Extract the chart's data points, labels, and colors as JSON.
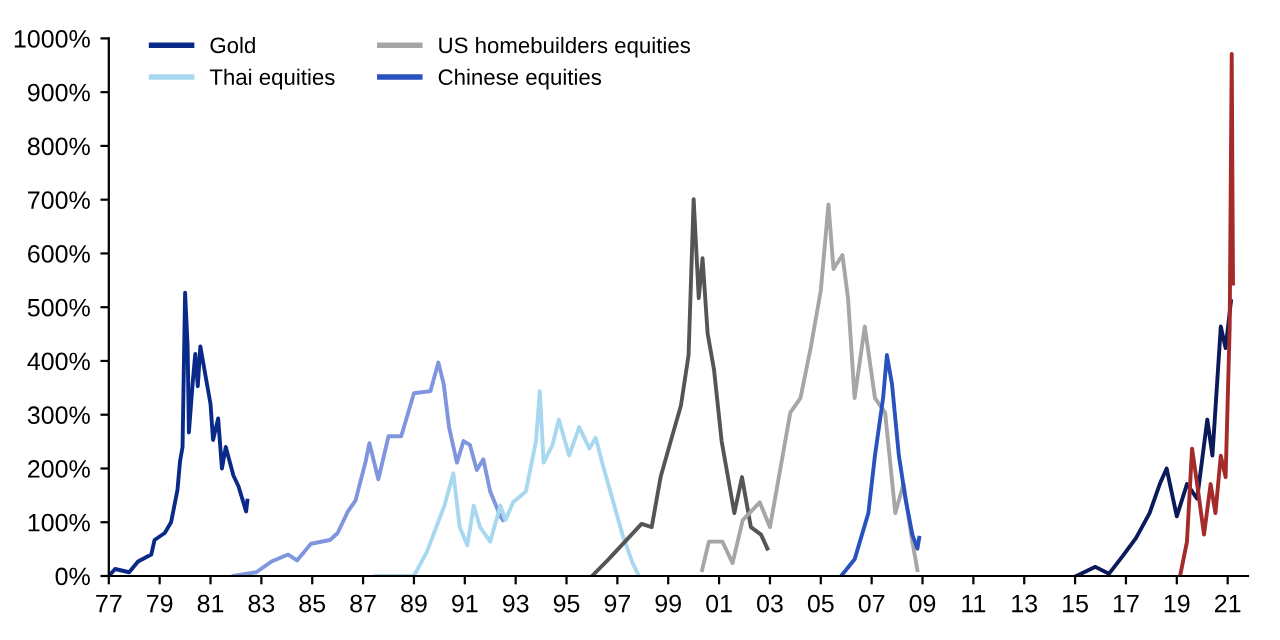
{
  "chart_data": {
    "type": "line",
    "xlim": [
      1977,
      2021.8
    ],
    "ylim": [
      0,
      1000
    ],
    "xticks": [
      {
        "value": 1977,
        "label": "77"
      },
      {
        "value": 1979,
        "label": "79"
      },
      {
        "value": 1981,
        "label": "81"
      },
      {
        "value": 1983,
        "label": "83"
      },
      {
        "value": 1985,
        "label": "85"
      },
      {
        "value": 1987,
        "label": "87"
      },
      {
        "value": 1989,
        "label": "89"
      },
      {
        "value": 1991,
        "label": "91"
      },
      {
        "value": 1993,
        "label": "93"
      },
      {
        "value": 1995,
        "label": "95"
      },
      {
        "value": 1997,
        "label": "97"
      },
      {
        "value": 1999,
        "label": "99"
      },
      {
        "value": 2001,
        "label": "01"
      },
      {
        "value": 2003,
        "label": "03"
      },
      {
        "value": 2005,
        "label": "05"
      },
      {
        "value": 2007,
        "label": "07"
      },
      {
        "value": 2009,
        "label": "09"
      },
      {
        "value": 2011,
        "label": "11"
      },
      {
        "value": 2013,
        "label": "13"
      },
      {
        "value": 2015,
        "label": "15"
      },
      {
        "value": 2017,
        "label": "17"
      },
      {
        "value": 2019,
        "label": "19"
      },
      {
        "value": 2021,
        "label": "21"
      }
    ],
    "yticks": [
      {
        "value": 0,
        "label": "0%"
      },
      {
        "value": 100,
        "label": "100%"
      },
      {
        "value": 200,
        "label": "200%"
      },
      {
        "value": 300,
        "label": "300%"
      },
      {
        "value": 400,
        "label": "400%"
      },
      {
        "value": 500,
        "label": "500%"
      },
      {
        "value": 600,
        "label": "600%"
      },
      {
        "value": 700,
        "label": "700%"
      },
      {
        "value": 800,
        "label": "800%"
      },
      {
        "value": 900,
        "label": "900%"
      },
      {
        "value": 1000,
        "label": "1000%"
      }
    ],
    "grid": false,
    "legend": "top left",
    "marker": "none",
    "line_style": "solid",
    "series": [
      {
        "name": "Gold",
        "color": "#0a2a8a",
        "x": [
          1977.0,
          1977.25,
          1977.8,
          1978.15,
          1978.67,
          1978.8,
          1979.2,
          1979.45,
          1979.7,
          1979.8,
          1979.9,
          1980.0,
          1980.1,
          1980.15,
          1980.3,
          1980.4,
          1980.5,
          1980.6,
          1980.85,
          1981.0,
          1981.1,
          1981.3,
          1981.45,
          1981.6,
          1981.9,
          1982.1,
          1982.4,
          1982.45
        ],
        "values": [
          0,
          13,
          7,
          27,
          40,
          67,
          80,
          100,
          160,
          213,
          240,
          527,
          427,
          267,
          360,
          413,
          353,
          427,
          360,
          320,
          253,
          293,
          200,
          240,
          187,
          167,
          120,
          140
        ]
      },
      {
        "color": "#7f95dd",
        "x": [
          1981.9,
          1982.8,
          1983.4,
          1984.05,
          1984.4,
          1984.95,
          1985.7,
          1986.0,
          1986.4,
          1986.7,
          1987.1,
          1987.25,
          1987.6,
          1988.0,
          1988.5,
          1989.0,
          1989.65,
          1989.96,
          1990.17,
          1990.38,
          1990.69,
          1990.95,
          1991.2,
          1991.47,
          1991.73,
          1992.0,
          1992.4,
          1992.5
        ],
        "values": [
          0,
          7,
          27,
          40,
          29,
          60,
          67,
          80,
          120,
          140,
          213,
          247,
          180,
          260,
          260,
          340,
          344,
          397,
          357,
          277,
          211,
          251,
          244,
          197,
          217,
          157,
          111,
          104
        ]
      },
      {
        "name": "Thai equities",
        "color": "#a8d8f0",
        "x": [
          1987.5,
          1989.0,
          1989.5,
          1990.2,
          1990.55,
          1990.8,
          1991.1,
          1991.35,
          1991.6,
          1992.0,
          1992.4,
          1992.6,
          1992.9,
          1993.4,
          1993.8,
          1993.95,
          1994.1,
          1994.45,
          1994.7,
          1995.1,
          1995.5,
          1995.9,
          1996.15,
          1996.4,
          1996.8,
          1997.2,
          1997.6,
          1997.85
        ],
        "values": [
          0,
          0,
          44,
          131,
          191,
          91,
          57,
          131,
          91,
          64,
          131,
          104,
          137,
          157,
          251,
          344,
          211,
          244,
          291,
          224,
          277,
          237,
          257,
          211,
          144,
          77,
          24,
          0
        ]
      },
      {
        "color": "#555555",
        "x": [
          1996.0,
          1996.65,
          1997.3,
          1997.95,
          1998.35,
          1998.7,
          1999.1,
          1999.5,
          1999.8,
          2000.0,
          2000.2,
          2000.35,
          2000.55,
          2000.8,
          2001.1,
          2001.35,
          2001.6,
          2001.9,
          2002.25,
          2002.65,
          2002.9
        ],
        "values": [
          0,
          31,
          64,
          97,
          91,
          184,
          251,
          317,
          411,
          701,
          517,
          591,
          451,
          384,
          251,
          184,
          117,
          184,
          91,
          77,
          51
        ]
      },
      {
        "name": "US homebuilders equities",
        "color": "#a6a6a6",
        "x": [
          2000.33,
          2000.6,
          2001.13,
          2001.53,
          2001.93,
          2002.6,
          2003.0,
          2003.4,
          2003.8,
          2004.2,
          2004.6,
          2005.0,
          2005.3,
          2005.5,
          2005.85,
          2006.07,
          2006.33,
          2006.73,
          2007.13,
          2007.53,
          2007.93,
          2008.25,
          2008.6,
          2008.8
        ],
        "values": [
          11,
          64,
          64,
          24,
          104,
          137,
          91,
          197,
          304,
          331,
          424,
          531,
          691,
          571,
          597,
          517,
          331,
          464,
          331,
          304,
          117,
          171,
          64,
          11
        ]
      },
      {
        "name": "Chinese equities",
        "color": "#2a52be",
        "x": [
          2005.8,
          2006.33,
          2006.87,
          2007.13,
          2007.45,
          2007.6,
          2007.8,
          2008.07,
          2008.33,
          2008.6,
          2008.8,
          2008.87
        ],
        "values": [
          0,
          31,
          117,
          224,
          331,
          411,
          357,
          224,
          144,
          77,
          51,
          71
        ]
      },
      {
        "color": "#0b1a5a",
        "x": [
          2015.05,
          2015.8,
          2016.33,
          2016.87,
          2017.4,
          2017.93,
          2018.33,
          2018.6,
          2019.0,
          2019.4,
          2019.8,
          2020.2,
          2020.4,
          2020.73,
          2020.92,
          2021.13
        ],
        "values": [
          0,
          17,
          4,
          37,
          71,
          117,
          171,
          200,
          111,
          171,
          144,
          291,
          224,
          464,
          424,
          511
        ]
      },
      {
        "color": "#a52a2a",
        "x": [
          2019.13,
          2019.4,
          2019.6,
          2019.8,
          2020.07,
          2020.33,
          2020.52,
          2020.73,
          2020.92,
          2021.08,
          2021.16,
          2021.21
        ],
        "values": [
          0,
          64,
          237,
          171,
          77,
          171,
          117,
          224,
          184,
          464,
          971,
          544
        ]
      }
    ]
  }
}
